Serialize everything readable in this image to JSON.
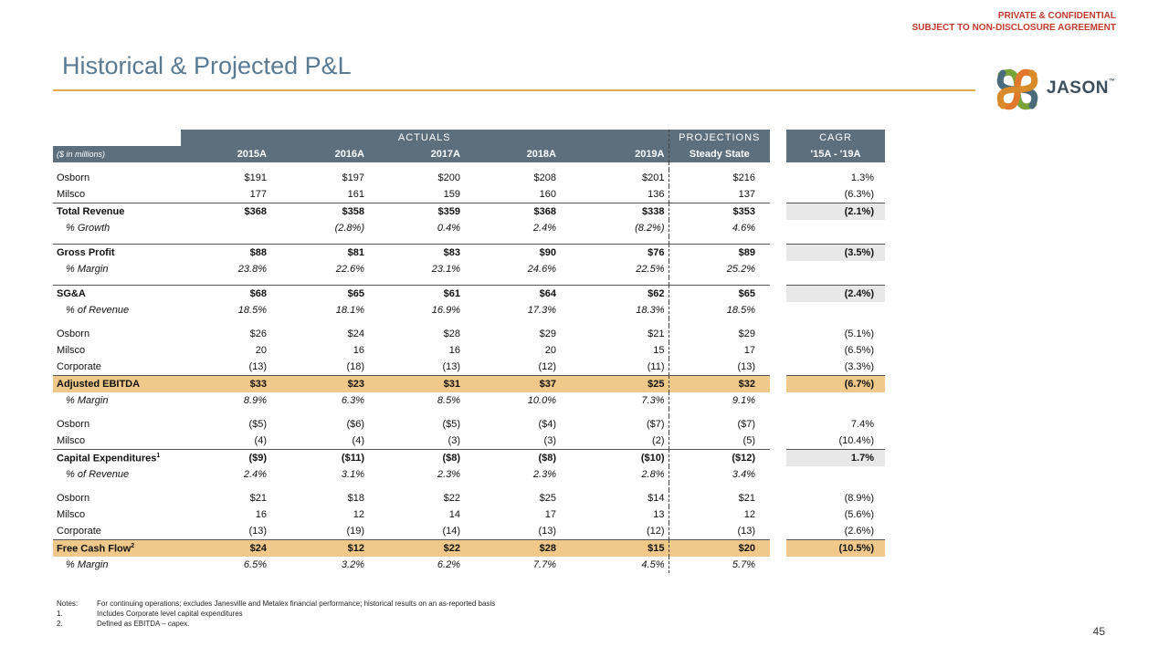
{
  "header": {
    "confidential_line1": "PRIVATE & CONFIDENTIAL",
    "confidential_line2": "SUBJECT TO NON-DISCLOSURE AGREEMENT",
    "title": "Historical & Projected P&L",
    "logo_text": "JASON",
    "logo_tm": "™"
  },
  "colors": {
    "title": "#5a7a94",
    "accent": "#e3a94c",
    "header_bg": "#5d6e7c",
    "highlight": "#f0c98a",
    "confidential": "#c0392b"
  },
  "table": {
    "group_headers": {
      "actuals": "ACTUALS",
      "projections": "PROJECTIONS",
      "cagr": "CAGR"
    },
    "units": "($ in millions)",
    "columns": [
      "2015A",
      "2016A",
      "2017A",
      "2018A",
      "2019A",
      "Steady State",
      "'15A - '19A"
    ],
    "rows": [
      {
        "label": "Osborn",
        "v": [
          "$191",
          "$197",
          "$200",
          "$208",
          "$201",
          "$216",
          "1.3%"
        ]
      },
      {
        "label": "Milsco",
        "v": [
          "177",
          "161",
          "159",
          "160",
          "136",
          "137",
          "(6.3%)"
        ]
      },
      {
        "label": "Total Revenue",
        "v": [
          "$368",
          "$358",
          "$359",
          "$368",
          "$338",
          "$353",
          "(2.1%)"
        ]
      },
      {
        "label": "% Growth",
        "v": [
          "",
          "(2.8%)",
          "0.4%",
          "2.4%",
          "(8.2%)",
          "4.6%",
          ""
        ]
      },
      {
        "label": "Gross Profit",
        "v": [
          "$88",
          "$81",
          "$83",
          "$90",
          "$76",
          "$89",
          "(3.5%)"
        ]
      },
      {
        "label": "% Margin",
        "v": [
          "23.8%",
          "22.6%",
          "23.1%",
          "24.6%",
          "22.5%",
          "25.2%",
          ""
        ]
      },
      {
        "label": "SG&A",
        "v": [
          "$68",
          "$65",
          "$61",
          "$64",
          "$62",
          "$65",
          "(2.4%)"
        ]
      },
      {
        "label": "% of Revenue",
        "v": [
          "18.5%",
          "18.1%",
          "16.9%",
          "17.3%",
          "18.3%",
          "18.5%",
          ""
        ]
      },
      {
        "label": "Osborn",
        "v": [
          "$26",
          "$24",
          "$28",
          "$29",
          "$21",
          "$29",
          "(5.1%)"
        ]
      },
      {
        "label": "Milsco",
        "v": [
          "20",
          "16",
          "16",
          "20",
          "15",
          "17",
          "(6.5%)"
        ]
      },
      {
        "label": "Corporate",
        "v": [
          "(13)",
          "(18)",
          "(13)",
          "(12)",
          "(11)",
          "(13)",
          "(3.3%)"
        ]
      },
      {
        "label": "Adjusted EBITDA",
        "v": [
          "$33",
          "$23",
          "$31",
          "$37",
          "$25",
          "$32",
          "(6.7%)"
        ]
      },
      {
        "label": "% Margin",
        "v": [
          "8.9%",
          "6.3%",
          "8.5%",
          "10.0%",
          "7.3%",
          "9.1%",
          ""
        ]
      },
      {
        "label": "Osborn",
        "v": [
          "($5)",
          "($6)",
          "($5)",
          "($4)",
          "($7)",
          "($7)",
          "7.4%"
        ]
      },
      {
        "label": "Milsco",
        "v": [
          "(4)",
          "(4)",
          "(3)",
          "(3)",
          "(2)",
          "(5)",
          "(10.4%)"
        ]
      },
      {
        "label": "Capital Expenditures",
        "sup": "1",
        "v": [
          "($9)",
          "($11)",
          "($8)",
          "($8)",
          "($10)",
          "($12)",
          "1.7%"
        ]
      },
      {
        "label": "% of Revenue",
        "v": [
          "2.4%",
          "3.1%",
          "2.3%",
          "2.3%",
          "2.8%",
          "3.4%",
          ""
        ]
      },
      {
        "label": "Osborn",
        "v": [
          "$21",
          "$18",
          "$22",
          "$25",
          "$14",
          "$21",
          "(8.9%)"
        ]
      },
      {
        "label": "Milsco",
        "v": [
          "16",
          "12",
          "14",
          "17",
          "13",
          "12",
          "(5.6%)"
        ]
      },
      {
        "label": "Corporate",
        "v": [
          "(13)",
          "(19)",
          "(14)",
          "(13)",
          "(12)",
          "(13)",
          "(2.6%)"
        ]
      },
      {
        "label": "Free Cash Flow",
        "sup": "2",
        "v": [
          "$24",
          "$12",
          "$22",
          "$28",
          "$15",
          "$20",
          "(10.5%)"
        ]
      },
      {
        "label": "% Margin",
        "v": [
          "6.5%",
          "3.2%",
          "6.2%",
          "7.7%",
          "4.5%",
          "5.7%",
          ""
        ]
      }
    ]
  },
  "notes": {
    "label": "Notes:",
    "main": "For continuing operations; excludes Janesville and Metalex financial performance; historical results on an as-reported basis",
    "n1_key": "1.",
    "n1": "Includes Corporate level capital expenditures",
    "n2_key": "2.",
    "n2": "Defined as EBITDA – capex."
  },
  "page_number": "45"
}
